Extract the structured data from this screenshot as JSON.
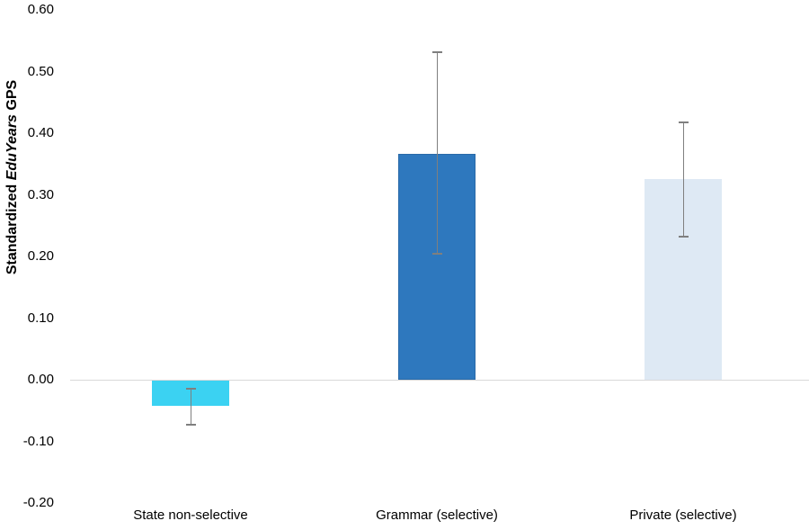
{
  "chart_data": {
    "type": "bar",
    "title": "",
    "xlabel": "",
    "ylabel": {
      "prefix": "Standardized ",
      "italic": "EduYears",
      "suffix": " GPS"
    },
    "categories": [
      "State non-selective",
      "Grammar (selective)",
      "Private (selective)"
    ],
    "values": [
      -0.043,
      0.367,
      0.326
    ],
    "errors": [
      {
        "low": -0.073,
        "high": -0.014
      },
      {
        "low": 0.205,
        "high": 0.532
      },
      {
        "low": 0.232,
        "high": 0.418
      }
    ],
    "bar_colors": [
      "#3bd2f2",
      "#2e78be",
      "#dee9f4"
    ],
    "bar_border_colors": [
      null,
      "#2a6aa8",
      null
    ],
    "y_ticks": [
      "0.60",
      "0.50",
      "0.40",
      "0.30",
      "0.20",
      "0.10",
      "0.00",
      "-0.10",
      "-0.20"
    ],
    "ylim": [
      -0.2,
      0.6
    ],
    "grid": false,
    "legend": "none",
    "error_bar_color": "#7f7f7f",
    "axis_line_color": "#d9d9d9",
    "text_color": "#000000",
    "background_color": "#ffffff"
  }
}
